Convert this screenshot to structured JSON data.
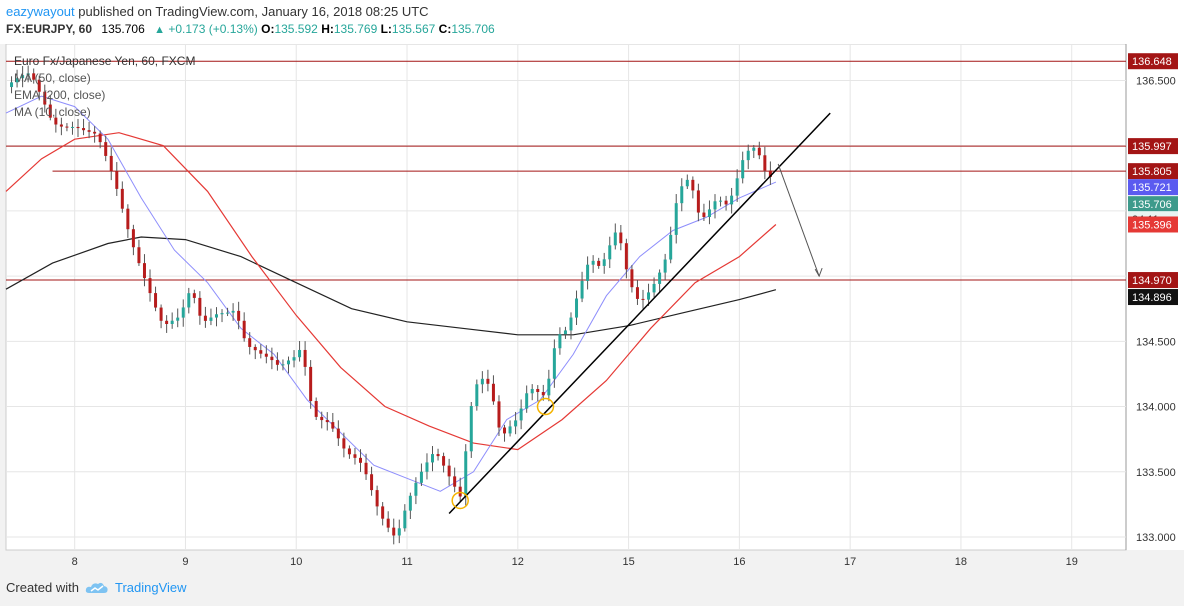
{
  "header": {
    "username": "eazywayout",
    "published_text": "published on TradingView.com, January 16, 2018 08:25 UTC",
    "symbol": "FX:EURJPY, 60",
    "last_price": "135.706",
    "change_arrow": "▲",
    "change": "+0.173 (+0.13%)",
    "ohlc": [
      {
        "label": "O:",
        "value": "135.592"
      },
      {
        "label": "H:",
        "value": "135.769"
      },
      {
        "label": "L:",
        "value": "135.567"
      },
      {
        "label": "C:",
        "value": "135.706"
      }
    ]
  },
  "legend": {
    "title": "Euro Fx/Japanese Yen, 60, FXCM",
    "studies": [
      "MA (50, close)",
      "EMA (200, close)",
      "MA (10, close)"
    ]
  },
  "footer": {
    "created_with": "Created with",
    "brand": "TradingView",
    "logo_icon": "tradingview-cloud-icon"
  },
  "colors": {
    "up": "#26a69a",
    "down": "#b71c1c",
    "ma50": "#e53935",
    "ema200": "#222222",
    "ma10": "#8e8efc",
    "hline": "#a31515",
    "marker": "#f5b400",
    "grid": "#e6e6e6"
  },
  "chart_data": {
    "type": "candlestick",
    "y_ticks": [
      133.0,
      133.5,
      134.0,
      134.5,
      135.0,
      135.5,
      136.0,
      136.5
    ],
    "y_tick_labels": [
      "133.000",
      "133.500",
      "134.000",
      "134.500",
      "",
      "",
      "",
      "136.500"
    ],
    "y_range": [
      132.9,
      136.78
    ],
    "x_labels": [
      {
        "label": "8",
        "pos": 3.0
      },
      {
        "label": "9",
        "pos": 4.0
      },
      {
        "label": "10",
        "pos": 5.0
      },
      {
        "label": "11",
        "pos": 6.0
      },
      {
        "label": "12",
        "pos": 7.0
      },
      {
        "label": "15",
        "pos": 8.0
      },
      {
        "label": "16",
        "pos": 9.0
      },
      {
        "label": "17",
        "pos": 10.0
      },
      {
        "label": "18",
        "pos": 11.0
      },
      {
        "label": "19",
        "pos": 12.0
      }
    ],
    "x_range": [
      2.38,
      12.49
    ],
    "candle_anchors": [
      [
        2.38,
        136.45
      ],
      [
        2.6,
        136.5
      ],
      [
        2.8,
        136.2
      ],
      [
        3.0,
        136.2
      ],
      [
        3.2,
        136.05
      ],
      [
        3.35,
        135.7
      ],
      [
        3.5,
        135.3
      ],
      [
        3.65,
        135.0
      ],
      [
        3.8,
        134.65
      ],
      [
        3.95,
        134.65
      ],
      [
        4.05,
        134.85
      ],
      [
        4.15,
        134.6
      ],
      [
        4.3,
        134.75
      ],
      [
        4.45,
        134.8
      ],
      [
        4.55,
        134.5
      ],
      [
        4.7,
        134.35
      ],
      [
        4.85,
        134.25
      ],
      [
        5.0,
        134.4
      ],
      [
        5.05,
        134.5
      ],
      [
        5.15,
        134.0
      ],
      [
        5.3,
        133.9
      ],
      [
        5.45,
        133.6
      ],
      [
        5.6,
        133.5
      ],
      [
        5.75,
        133.2
      ],
      [
        5.9,
        133.05
      ],
      [
        6.0,
        133.3
      ],
      [
        6.1,
        133.45
      ],
      [
        6.25,
        133.6
      ],
      [
        6.4,
        133.4
      ],
      [
        6.5,
        133.3
      ],
      [
        6.55,
        133.95
      ],
      [
        6.65,
        134.3
      ],
      [
        6.75,
        134.2
      ],
      [
        6.85,
        133.75
      ],
      [
        7.0,
        133.85
      ],
      [
        7.1,
        134.1
      ],
      [
        7.25,
        134.1
      ],
      [
        7.35,
        134.6
      ],
      [
        7.45,
        134.65
      ],
      [
        7.55,
        134.9
      ],
      [
        7.65,
        135.1
      ],
      [
        7.75,
        135.0
      ],
      [
        7.9,
        135.35
      ],
      [
        8.0,
        135.0
      ],
      [
        8.1,
        134.85
      ],
      [
        8.25,
        135.0
      ],
      [
        8.35,
        135.15
      ],
      [
        8.45,
        135.6
      ],
      [
        8.55,
        135.7
      ],
      [
        8.65,
        135.4
      ],
      [
        8.8,
        135.65
      ],
      [
        8.9,
        135.6
      ],
      [
        9.05,
        135.95
      ],
      [
        9.15,
        135.95
      ],
      [
        9.25,
        135.7
      ],
      [
        9.3,
        135.706
      ]
    ],
    "h_lines": [
      136.648,
      135.997,
      135.805,
      134.97
    ],
    "price_labels": [
      {
        "value": "136.648",
        "kind": "hline"
      },
      {
        "value": "135.997",
        "kind": "hline"
      },
      {
        "value": "135.805",
        "kind": "hline"
      },
      {
        "value": "135.721",
        "kind": "ma10"
      },
      {
        "value": "135.706",
        "kind": "last"
      },
      {
        "value": "34:11",
        "kind": "countdown"
      },
      {
        "value": "135.396",
        "kind": "ma50"
      },
      {
        "value": "134.970",
        "kind": "hline"
      },
      {
        "value": "134.896",
        "kind": "ema200"
      }
    ],
    "ema200": [
      [
        2.38,
        134.9
      ],
      [
        2.8,
        135.1
      ],
      [
        3.3,
        135.25
      ],
      [
        3.6,
        135.3
      ],
      [
        4.0,
        135.28
      ],
      [
        4.5,
        135.15
      ],
      [
        5.0,
        134.95
      ],
      [
        5.5,
        134.75
      ],
      [
        6.0,
        134.65
      ],
      [
        6.5,
        134.6
      ],
      [
        7.0,
        134.55
      ],
      [
        7.5,
        134.55
      ],
      [
        8.0,
        134.62
      ],
      [
        8.5,
        134.72
      ],
      [
        9.0,
        134.82
      ],
      [
        9.33,
        134.896
      ]
    ],
    "ma50": [
      [
        2.38,
        135.65
      ],
      [
        2.7,
        135.9
      ],
      [
        3.0,
        136.05
      ],
      [
        3.4,
        136.1
      ],
      [
        3.8,
        136.0
      ],
      [
        4.2,
        135.65
      ],
      [
        4.6,
        135.15
      ],
      [
        5.0,
        134.7
      ],
      [
        5.4,
        134.3
      ],
      [
        5.8,
        134.0
      ],
      [
        6.2,
        133.85
      ],
      [
        6.6,
        133.72
      ],
      [
        7.0,
        133.67
      ],
      [
        7.4,
        133.9
      ],
      [
        7.8,
        134.2
      ],
      [
        8.2,
        134.6
      ],
      [
        8.6,
        134.95
      ],
      [
        9.0,
        135.15
      ],
      [
        9.33,
        135.396
      ]
    ],
    "ma10": [
      [
        2.38,
        136.25
      ],
      [
        2.7,
        136.38
      ],
      [
        3.0,
        136.3
      ],
      [
        3.3,
        136.05
      ],
      [
        3.6,
        135.6
      ],
      [
        3.9,
        135.2
      ],
      [
        4.2,
        134.95
      ],
      [
        4.5,
        134.6
      ],
      [
        4.8,
        134.4
      ],
      [
        5.1,
        134.05
      ],
      [
        5.4,
        133.8
      ],
      [
        5.7,
        133.55
      ],
      [
        6.0,
        133.45
      ],
      [
        6.3,
        133.35
      ],
      [
        6.6,
        133.5
      ],
      [
        6.9,
        133.9
      ],
      [
        7.2,
        134.05
      ],
      [
        7.5,
        134.4
      ],
      [
        7.8,
        134.85
      ],
      [
        8.1,
        135.15
      ],
      [
        8.4,
        135.35
      ],
      [
        8.7,
        135.45
      ],
      [
        9.0,
        135.6
      ],
      [
        9.33,
        135.721
      ]
    ],
    "trendline": [
      [
        6.38,
        133.18
      ],
      [
        9.82,
        136.25
      ]
    ],
    "arrow": [
      [
        9.35,
        135.86
      ],
      [
        9.72,
        135.0
      ]
    ],
    "markers": [
      [
        6.48,
        133.28
      ],
      [
        7.25,
        134.0
      ]
    ]
  }
}
